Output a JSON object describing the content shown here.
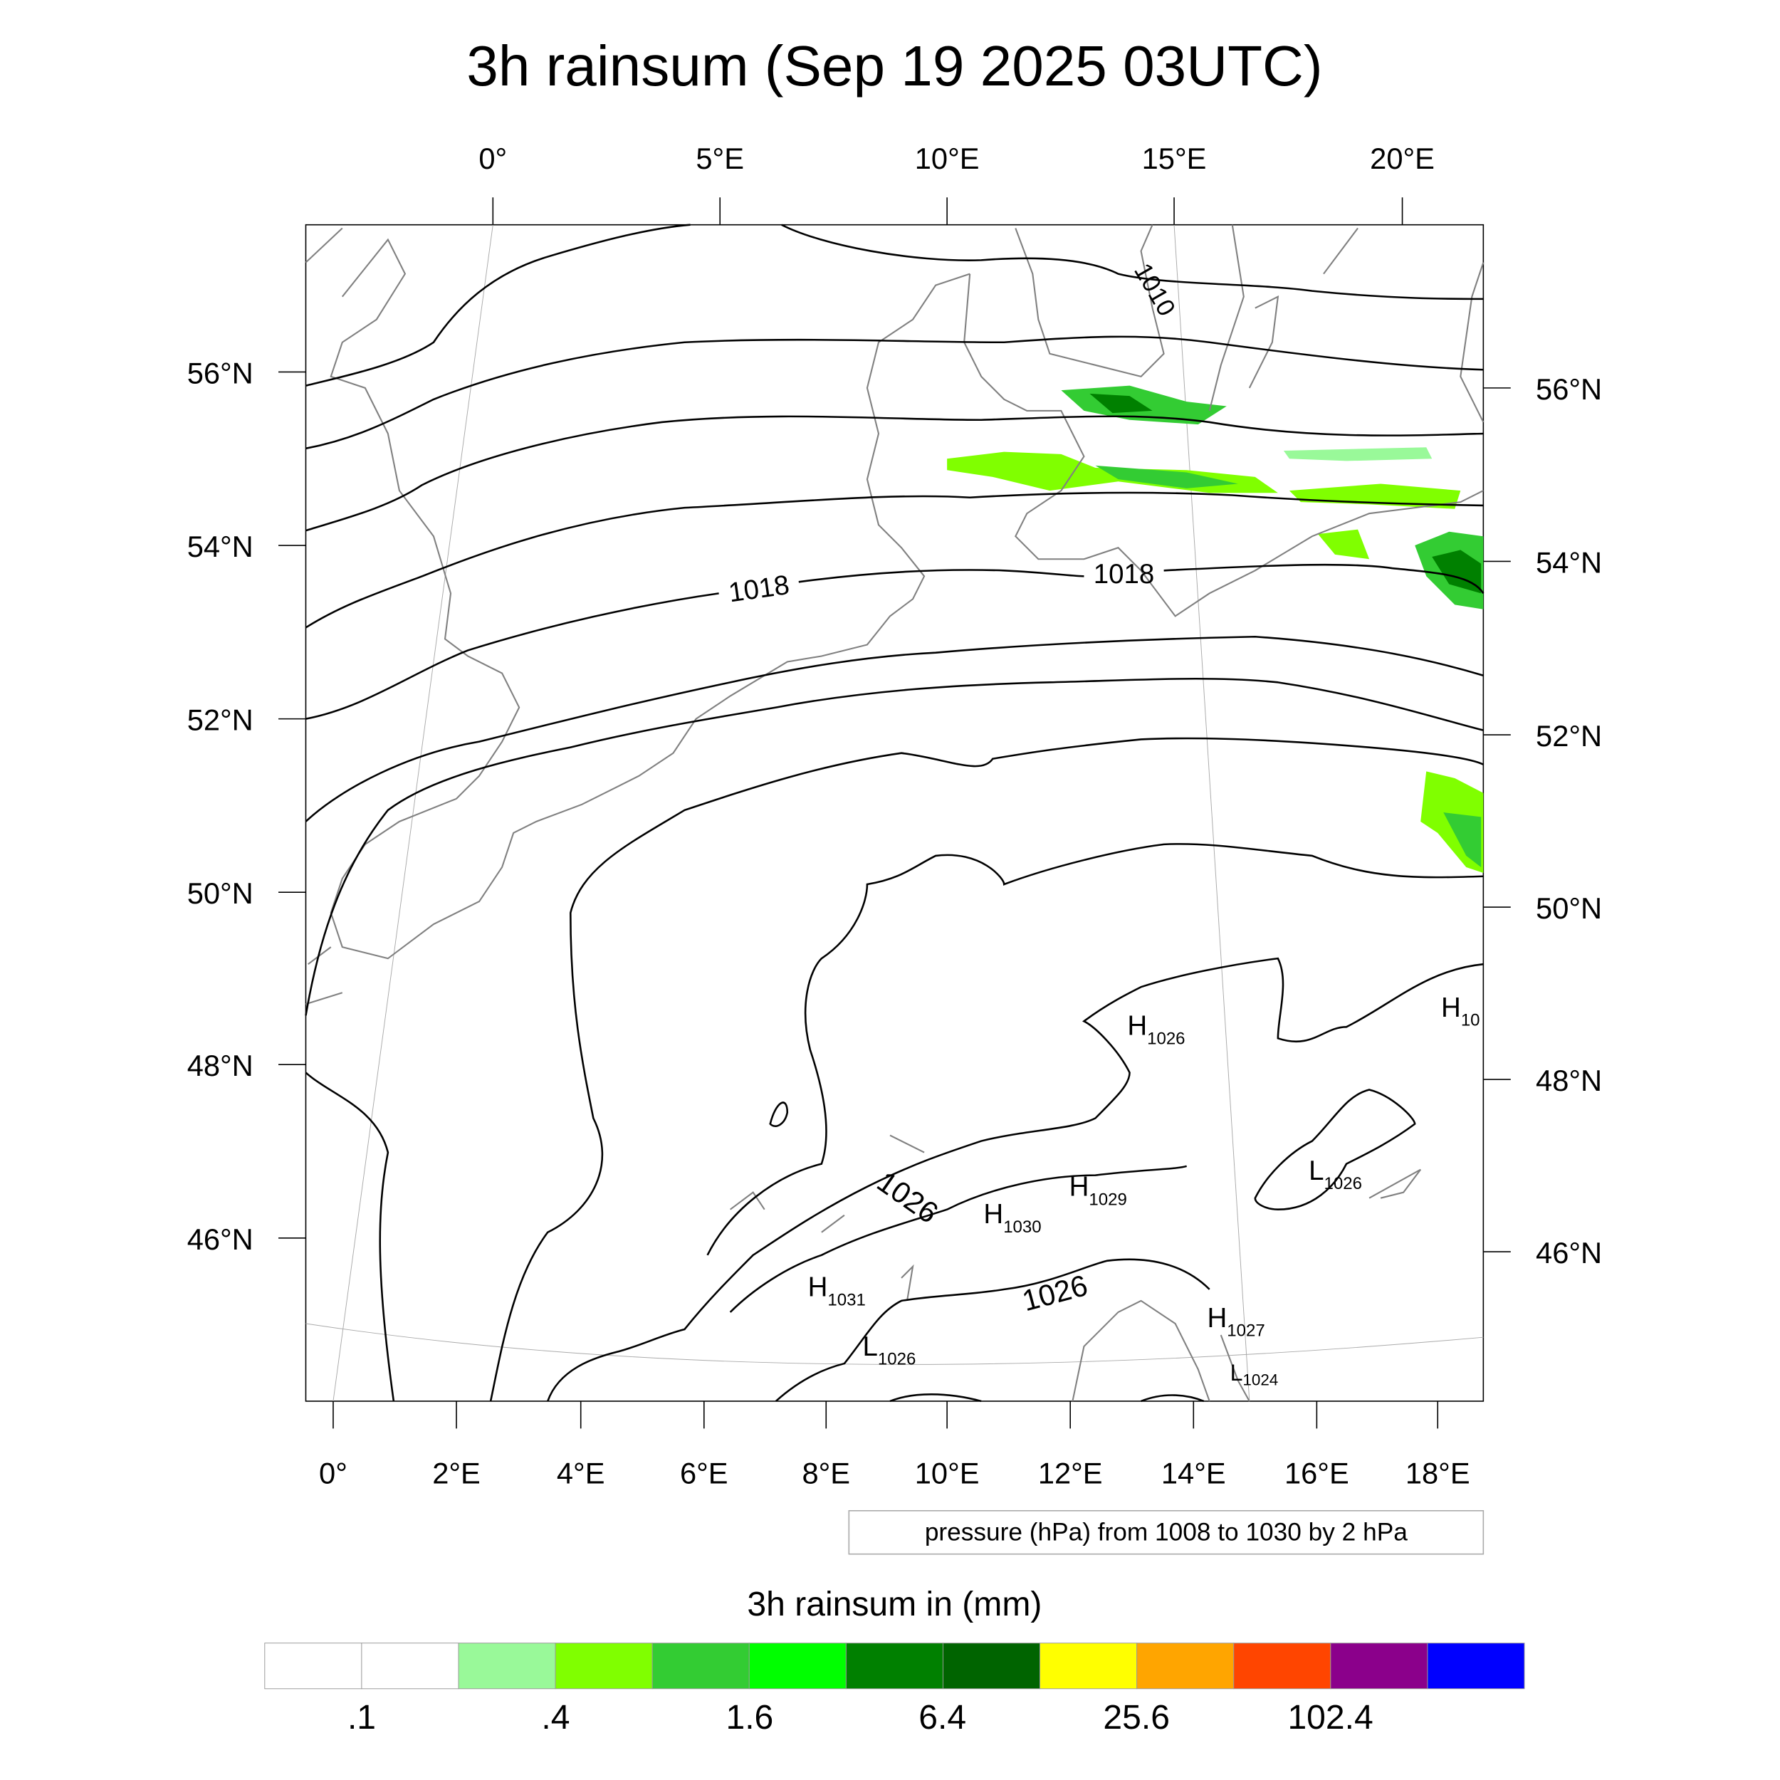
{
  "title": "3h rainsum (Sep 19 2025 03UTC)",
  "top_lon_labels": [
    "0°",
    "5°E",
    "10°E",
    "15°E",
    "20°E"
  ],
  "bottom_lon_labels": [
    "0°",
    "2°E",
    "4°E",
    "6°E",
    "8°E",
    "10°E",
    "12°E",
    "14°E",
    "16°E",
    "18°E"
  ],
  "left_lat_labels": [
    "56°N",
    "54°N",
    "52°N",
    "50°N",
    "48°N",
    "46°N"
  ],
  "right_lat_labels": [
    "56°N",
    "54°N",
    "52°N",
    "50°N",
    "48°N",
    "46°N"
  ],
  "contour_labels": [
    "1010",
    "1018",
    "1018",
    "1026",
    "1026"
  ],
  "pressure_centers": [
    {
      "kind": "H",
      "value": "1026"
    },
    {
      "kind": "H",
      "value": "10"
    },
    {
      "kind": "L",
      "value": "1026"
    },
    {
      "kind": "H",
      "value": "1029"
    },
    {
      "kind": "H",
      "value": "1030"
    },
    {
      "kind": "H",
      "value": "1031"
    },
    {
      "kind": "L",
      "value": "1026"
    },
    {
      "kind": "H",
      "value": "1027"
    },
    {
      "kind": "L",
      "value": "1024"
    }
  ],
  "info_box": "pressure (hPa) from 1008 to 1030 by 2 hPa",
  "colorbar": {
    "title": "3h rainsum in (mm)",
    "colors": [
      "#ffffff",
      "#ffffff",
      "#99f999",
      "#80ff00",
      "#33cc33",
      "#00ff00",
      "#008000",
      "#006400",
      "#ffff00",
      "#ffa500",
      "#ff4500",
      "#8b008b",
      "#0000ff"
    ],
    "labels": [
      ".1",
      ".4",
      "1.6",
      "6.4",
      "25.6",
      "102.4"
    ]
  }
}
